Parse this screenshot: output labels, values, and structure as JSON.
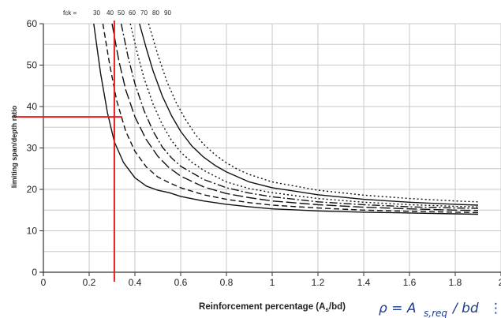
{
  "colors": {
    "curves": "#111111",
    "grid": "#c8c8c8",
    "marker": "#e21e1e",
    "formula": "#1f3d8f"
  },
  "chart_data": {
    "type": "line",
    "xlabel": "Reinforcement percentage (As/bd)",
    "ylabel": "limiting span/depth ratio",
    "xlim": [
      0,
      1.9
    ],
    "ylim": [
      0,
      60
    ],
    "x_ticks": [
      "0",
      "0.2",
      "0.4",
      "0.6",
      "0.8",
      "1",
      "1.2",
      "1.4",
      "1.6",
      "1.8",
      "2"
    ],
    "y_ticks": [
      "0",
      "10",
      "20",
      "30",
      "40",
      "50",
      "60"
    ],
    "grid": true,
    "curve_labels_prefix": "fck =",
    "curve_labels": [
      "30",
      "40",
      "50",
      "60",
      "70",
      "80",
      "90"
    ],
    "series": [
      {
        "name": "30",
        "style": "solid",
        "x": [
          0.22,
          0.25,
          0.28,
          0.31,
          0.35,
          0.4,
          0.45,
          0.5,
          0.55,
          0.6,
          0.7,
          0.8,
          0.9,
          1.0,
          1.2,
          1.4,
          1.6,
          1.8,
          1.9
        ],
        "y": [
          60,
          48,
          38.5,
          31.5,
          26.5,
          22.8,
          20.8,
          19.8,
          19.2,
          18.3,
          17.2,
          16.4,
          15.8,
          15.3,
          14.8,
          14.5,
          14.3,
          14.1,
          14.0
        ]
      },
      {
        "name": "40",
        "style": "dashed",
        "x": [
          0.26,
          0.29,
          0.32,
          0.36,
          0.4,
          0.45,
          0.5,
          0.55,
          0.6,
          0.7,
          0.8,
          0.9,
          1.0,
          1.2,
          1.4,
          1.6,
          1.8,
          1.9
        ],
        "y": [
          60,
          50,
          41.5,
          34,
          29.2,
          25.4,
          23,
          21.6,
          20.4,
          18.7,
          17.6,
          16.8,
          16.2,
          15.5,
          15.0,
          14.7,
          14.5,
          14.4
        ]
      },
      {
        "name": "50",
        "style": "longdash",
        "x": [
          0.3,
          0.33,
          0.36,
          0.4,
          0.45,
          0.5,
          0.55,
          0.6,
          0.7,
          0.8,
          0.9,
          1.0,
          1.2,
          1.4,
          1.6,
          1.8,
          1.9
        ],
        "y": [
          60,
          51,
          44,
          37.5,
          32,
          28,
          25.2,
          23.2,
          20.6,
          19,
          18,
          17.2,
          16.3,
          15.7,
          15.3,
          15.0,
          14.9
        ]
      },
      {
        "name": "60",
        "style": "dashdot",
        "x": [
          0.34,
          0.37,
          0.4,
          0.44,
          0.48,
          0.52,
          0.56,
          0.6,
          0.7,
          0.8,
          0.9,
          1.0,
          1.2,
          1.4,
          1.6,
          1.8,
          1.9
        ],
        "y": [
          60,
          52,
          45.5,
          39,
          34,
          30.2,
          27.6,
          25.6,
          22.4,
          20.4,
          19.1,
          18.2,
          17.0,
          16.3,
          15.8,
          15.5,
          15.4
        ]
      },
      {
        "name": "70",
        "style": "dotted",
        "x": [
          0.38,
          0.41,
          0.44,
          0.48,
          0.52,
          0.56,
          0.6,
          0.65,
          0.7,
          0.8,
          0.9,
          1.0,
          1.2,
          1.4,
          1.6,
          1.8,
          1.9
        ],
        "y": [
          60,
          53,
          46.8,
          40.5,
          35.6,
          31.8,
          29,
          26.5,
          24.6,
          21.8,
          20.2,
          19.2,
          17.8,
          16.9,
          16.3,
          15.9,
          15.8
        ]
      },
      {
        "name": "80",
        "style": "solid",
        "x": [
          0.42,
          0.45,
          0.48,
          0.52,
          0.56,
          0.6,
          0.65,
          0.7,
          0.75,
          0.8,
          0.9,
          1.0,
          1.2,
          1.4,
          1.6,
          1.8,
          1.9
        ],
        "y": [
          60,
          54,
          48.5,
          42.5,
          37.8,
          34,
          30.4,
          27.8,
          25.8,
          24.2,
          21.8,
          20.4,
          18.7,
          17.6,
          16.9,
          16.4,
          16.2
        ]
      },
      {
        "name": "90",
        "style": "dotted",
        "x": [
          0.46,
          0.5,
          0.54,
          0.58,
          0.62,
          0.66,
          0.7,
          0.75,
          0.8,
          0.85,
          0.9,
          1.0,
          1.2,
          1.4,
          1.6,
          1.8,
          1.9
        ],
        "y": [
          60,
          52.5,
          46,
          41,
          37,
          33.6,
          30.9,
          28.4,
          26.4,
          24.8,
          23.6,
          21.8,
          19.8,
          18.6,
          17.8,
          17.2,
          17.0
        ]
      }
    ],
    "annotations": {
      "marker_x": 0.31,
      "marker_y": 37.5
    }
  },
  "formula": {
    "rho": "ρ = A",
    "sub": "s,req",
    "rest": "/ bd",
    "tail": "⋮"
  }
}
